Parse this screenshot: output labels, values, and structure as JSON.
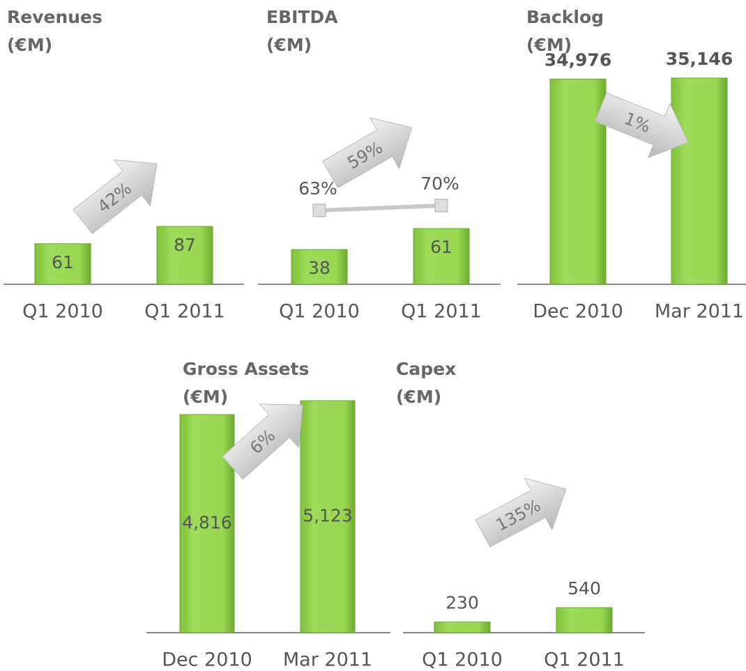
{
  "chart_data": [
    {
      "type": "bar",
      "title": "Revenues",
      "subtitle": "(€M)",
      "categories": [
        "Q1 2010",
        "Q1 2011"
      ],
      "values": [
        61,
        87
      ],
      "color": "#92d050",
      "label_position": "inside",
      "arrow_label": "42%"
    },
    {
      "type": "bar",
      "title": "EBITDA",
      "subtitle": "(€M)",
      "categories": [
        "Q1 2010",
        "Q1 2011"
      ],
      "values": [
        38,
        61
      ],
      "color": "#92d050",
      "label_position": "inside",
      "arrow_label": "59%",
      "line": {
        "values": [
          63,
          70
        ],
        "value_labels": [
          "63%",
          "70%"
        ],
        "color": "#c8c8c8"
      }
    },
    {
      "type": "bar",
      "title": "Backlog",
      "subtitle": "(€M)",
      "categories": [
        "Dec 2010",
        "Mar 2011"
      ],
      "values": [
        34976,
        35146
      ],
      "value_labels": [
        "34,976",
        "35,146"
      ],
      "color": "#92d050",
      "label_position": "above",
      "arrow_label": "1%"
    },
    {
      "type": "bar",
      "title": "Gross Assets",
      "subtitle": "(€M)",
      "categories": [
        "Dec 2010",
        "Mar 2011"
      ],
      "values": [
        4816,
        5123
      ],
      "value_labels": [
        "4,816",
        "5,123"
      ],
      "color": "#92d050",
      "label_position": "middle",
      "arrow_label": "6%"
    },
    {
      "type": "bar",
      "title": "Capex",
      "subtitle": "(€M)",
      "categories": [
        "Q1 2010",
        "Q1 2011"
      ],
      "values": [
        230,
        540
      ],
      "color": "#92d050",
      "label_position": "above",
      "arrow_label": "135%"
    }
  ]
}
